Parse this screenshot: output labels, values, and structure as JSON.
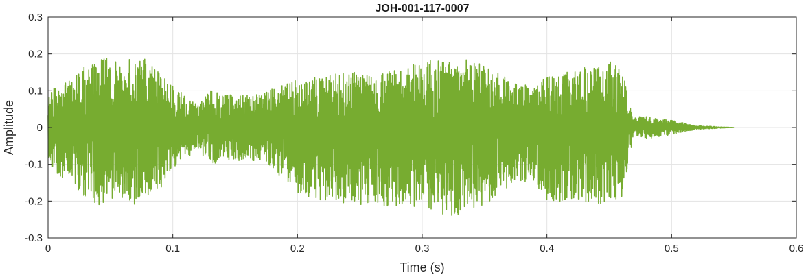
{
  "chart_data": {
    "type": "line",
    "title": "JOH-001-117-0007",
    "xlabel": "Time (s)",
    "ylabel": "Amplitude",
    "xlim": [
      0,
      0.6
    ],
    "ylim": [
      -0.3,
      0.3
    ],
    "xticks": [
      0,
      0.1,
      0.2,
      0.3,
      0.4,
      0.5,
      0.6
    ],
    "xtick_labels": [
      "0",
      "0.1",
      "0.2",
      "0.3",
      "0.4",
      "0.5",
      "0.6"
    ],
    "yticks": [
      0.3,
      0.2,
      0.1,
      0,
      -0.1,
      -0.2,
      -0.3
    ],
    "ytick_labels": [
      "0.3",
      "0.2",
      "0.1",
      "0",
      "-0.1",
      "-0.2",
      "-0.3"
    ],
    "grid": true,
    "line_color": "#77AC30",
    "series": [
      {
        "x": [
          0,
          0.02,
          0.04,
          0.06,
          0.07,
          0.09,
          0.1,
          0.12,
          0.13,
          0.15,
          0.17,
          0.19,
          0.2,
          0.22,
          0.24,
          0.26,
          0.28,
          0.3,
          0.32,
          0.33,
          0.35,
          0.37,
          0.39,
          0.4,
          0.42,
          0.44,
          0.45,
          0.46,
          0.47,
          0.48,
          0.5,
          0.52,
          0.55
        ],
        "y_max": [
          0.1,
          0.14,
          0.2,
          0.17,
          0.21,
          0.15,
          0.12,
          0.06,
          0.1,
          0.09,
          0.09,
          0.12,
          0.13,
          0.14,
          0.15,
          0.15,
          0.16,
          0.18,
          0.19,
          0.19,
          0.17,
          0.13,
          0.11,
          0.14,
          0.16,
          0.17,
          0.18,
          0.17,
          0.03,
          0.03,
          0.02,
          0.005,
          0.0
        ],
        "y_min": [
          -0.12,
          -0.16,
          -0.22,
          -0.19,
          -0.22,
          -0.17,
          -0.11,
          -0.06,
          -0.1,
          -0.09,
          -0.09,
          -0.15,
          -0.18,
          -0.2,
          -0.21,
          -0.21,
          -0.22,
          -0.23,
          -0.24,
          -0.24,
          -0.21,
          -0.16,
          -0.15,
          -0.2,
          -0.2,
          -0.21,
          -0.2,
          -0.19,
          -0.02,
          -0.03,
          -0.02,
          -0.005,
          0.0
        ]
      }
    ]
  }
}
